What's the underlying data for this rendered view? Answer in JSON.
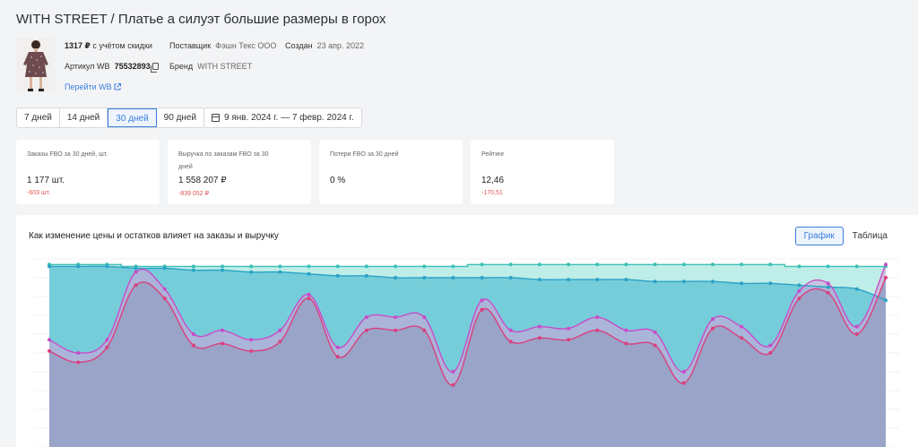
{
  "header": {
    "brand": "WITH STREET",
    "separator": " / ",
    "product_name": "Платье а силуэт большие размеры в горох"
  },
  "product": {
    "price": "1317 ₽",
    "price_note": "с учётом скидки",
    "supplier_label": "Поставщик",
    "supplier_value": "Фэшн Текс ООО",
    "created_label": "Создан",
    "created_value": "23 апр. 2022",
    "article_label": "Артикул WB",
    "article_value": "75532893",
    "brand_label": "Бренд",
    "brand_value": "WITH STREET",
    "link_label": "Перейти WB"
  },
  "periods": [
    {
      "label": "7 дней",
      "active": false
    },
    {
      "label": "14 дней",
      "active": false
    },
    {
      "label": "30 дней",
      "active": true
    },
    {
      "label": "90 дней",
      "active": false
    }
  ],
  "date_range": "9 янв. 2024 г. — 7 февр. 2024 г.",
  "cards": [
    {
      "label": "Заказы FBO за 30 дней, шт.",
      "value": "1 177 шт.",
      "delta": "-603 шт."
    },
    {
      "label": "Выручка по заказам FBO за 30 дней",
      "value": "1 558 207 ₽",
      "delta": "-839 052 ₽"
    },
    {
      "label": "Потери FBO за 30 дней",
      "value": "0 %",
      "delta": ""
    },
    {
      "label": "Рейтинг",
      "value": "12,46",
      "delta": "-170,51"
    }
  ],
  "chart_panel": {
    "title": "Как изменение цены и остатков влияет на заказы и выручку",
    "view_chart": "График",
    "view_table": "Таблица"
  },
  "colors": {
    "accent": "#3b7ddd",
    "negative": "#e05252",
    "stock_line": "#3cbfb4",
    "stock_fill": "#b8ebe6",
    "price_line": "#2aa3c6",
    "price_fill": "#72cbd9",
    "orders_line": "#c84bc8",
    "orders_fill": "#9aa3c8",
    "revenue_line": "#d9407f"
  },
  "chart_data": {
    "type": "area",
    "x": [
      1,
      2,
      3,
      4,
      5,
      6,
      7,
      8,
      9,
      10,
      11,
      12,
      13,
      14,
      15,
      16,
      17,
      18,
      19,
      20,
      21,
      22,
      23,
      24,
      25,
      26,
      27,
      28,
      29,
      30
    ],
    "ylim": [
      0,
      100
    ],
    "grid": true,
    "series": [
      {
        "values": [
          97,
          97,
          97,
          96,
          96,
          96,
          96,
          96,
          96,
          96,
          96,
          96,
          96,
          96,
          96,
          97,
          97,
          97,
          97,
          97,
          97,
          97,
          97,
          97,
          97,
          97,
          96,
          96,
          96,
          96
        ]
      },
      {
        "values": [
          96,
          96,
          96,
          95,
          95,
          94,
          94,
          93,
          93,
          92,
          91,
          91,
          90,
          90,
          90,
          90,
          90,
          89,
          89,
          89,
          89,
          88,
          88,
          88,
          87,
          87,
          86,
          85,
          84,
          78
        ]
      },
      {
        "values": [
          57,
          50,
          57,
          93,
          84,
          60,
          62,
          57,
          62,
          81,
          53,
          69,
          69,
          69,
          40,
          78,
          62,
          64,
          63,
          69,
          62,
          61,
          40,
          68,
          64,
          54,
          83,
          87,
          64,
          97
        ]
      },
      {
        "values": [
          51,
          45,
          53,
          86,
          79,
          54,
          55,
          51,
          56,
          79,
          48,
          62,
          62,
          62,
          33,
          73,
          56,
          58,
          57,
          62,
          55,
          54,
          34,
          63,
          58,
          50,
          79,
          82,
          60,
          90
        ]
      }
    ]
  }
}
